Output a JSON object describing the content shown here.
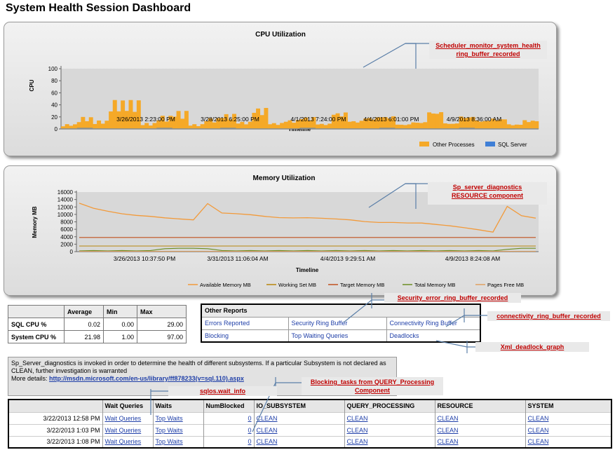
{
  "title": "System Health Session Dashboard",
  "cpu_chart": {
    "title": "CPU Utilization",
    "ylabel": "CPU",
    "xlabel": "Timeline",
    "yticks": [
      "0",
      "20",
      "40",
      "60",
      "80",
      "100"
    ],
    "xticks": [
      "3/26/2013 2:23:00 PM",
      "3/28/2013 6:25:00 PM",
      "4/1/2013 7:24:00 PM",
      "4/4/2013 6:01:00 PM",
      "4/9/2013 8:36:00 AM"
    ],
    "legend": [
      "Other Processes",
      "SQL Server"
    ],
    "colors": {
      "other": "#f5a928",
      "sql": "#3f7fd6"
    }
  },
  "memory_chart": {
    "title": "Memory Utilization",
    "ylabel": "Memory MB",
    "xlabel": "Timeline",
    "yticks": [
      "0",
      "2000",
      "4000",
      "6000",
      "8000",
      "10000",
      "12000",
      "14000",
      "16000"
    ],
    "xticks": [
      "3/26/2013 10:37:50 PM",
      "3/31/2013 11:06:04 AM",
      "4/4/2013 9:29:51 AM",
      "4/9/2013 8:24:08 AM"
    ],
    "legend": [
      "Available Memory MB",
      "Working Set MB",
      "Target Memory MB",
      "Total Memory MB",
      "Pages Free MB"
    ],
    "colors": [
      "#f29a3a",
      "#b8860b",
      "#c0501e",
      "#6b8e23",
      "#e0a060"
    ]
  },
  "chart_data": [
    {
      "type": "area",
      "title": "CPU Utilization",
      "xlabel": "Timeline",
      "ylabel": "CPU",
      "ylim": [
        0,
        100
      ],
      "series": [
        {
          "name": "Other Processes",
          "values": [
            8,
            20,
            14,
            48,
            48,
            10,
            22,
            30,
            8,
            18,
            25,
            12,
            35,
            10,
            15,
            20,
            9,
            28,
            14,
            20,
            22,
            8,
            12,
            30,
            10,
            22,
            15,
            18,
            8,
            15
          ]
        },
        {
          "name": "SQL Server",
          "values": [
            1,
            2,
            1,
            1,
            1,
            1,
            2,
            1,
            1,
            1,
            2,
            1,
            1,
            1,
            1,
            2,
            1,
            1,
            1,
            1,
            2,
            1,
            1,
            1,
            1,
            2,
            1,
            1,
            1,
            1
          ]
        }
      ]
    },
    {
      "type": "line",
      "title": "Memory Utilization",
      "xlabel": "Timeline",
      "ylabel": "Memory MB",
      "ylim": [
        0,
        16000
      ],
      "series": [
        {
          "name": "Available Memory MB",
          "values": [
            13000,
            11800,
            11000,
            10200,
            9600,
            9300,
            9000,
            8900,
            8700,
            13000,
            10300,
            10000,
            9800,
            9500,
            9300,
            9200,
            9100,
            8800,
            8600,
            8500,
            8200,
            8000,
            7900,
            7600,
            7500,
            7200,
            7000,
            6600,
            6000,
            5200,
            12000,
            9500,
            9000
          ]
        },
        {
          "name": "Working Set MB",
          "values": [
            1500,
            1500,
            1500,
            1500,
            1500,
            1500,
            1500,
            1500,
            1500,
            1500,
            1500,
            1500,
            1500,
            1500,
            1500,
            1500,
            1500,
            1500,
            1500,
            1500,
            1500,
            1500,
            1500,
            1500,
            1500,
            1500,
            1500,
            1500,
            1500,
            1500,
            1500,
            1500,
            1500
          ]
        },
        {
          "name": "Target Memory MB",
          "values": [
            3800,
            3800,
            3800,
            3800,
            3800,
            3800,
            3800,
            3800,
            3800,
            3800,
            3800,
            3800,
            3800,
            3800,
            3800,
            3800,
            3800,
            3800,
            3800,
            3800,
            3800,
            3800,
            3800,
            3800,
            3800,
            3800,
            3800,
            3800,
            3800,
            3800,
            3800,
            3800,
            3800
          ]
        },
        {
          "name": "Total Memory MB",
          "values": [
            200,
            300,
            200,
            300,
            200,
            300,
            800,
            900,
            900,
            800,
            300,
            200,
            300,
            200,
            300,
            200,
            300,
            200,
            300,
            200,
            300,
            200,
            300,
            200,
            300,
            200,
            300,
            200,
            300,
            200,
            600,
            900,
            900
          ]
        },
        {
          "name": "Pages Free MB",
          "values": [
            100,
            100,
            100,
            100,
            100,
            100,
            100,
            100,
            100,
            100,
            100,
            100,
            100,
            100,
            100,
            100,
            100,
            100,
            100,
            100,
            100,
            100,
            100,
            100,
            100,
            100,
            100,
            100,
            100,
            100,
            100,
            100,
            100
          ]
        }
      ]
    }
  ],
  "stats": {
    "headers": [
      "",
      "Average",
      "Min",
      "Max"
    ],
    "rows": [
      [
        "SQL CPU %",
        "0.02",
        "0.00",
        "29.00"
      ],
      [
        "System CPU %",
        "21.98",
        "1.00",
        "97.00"
      ]
    ]
  },
  "reports": {
    "header": "Other Reports",
    "rows": [
      [
        "Errors Reported",
        "Security Ring Buffer",
        "Connectivity Ring Buffer"
      ],
      [
        "Blocking",
        "Top Waiting Queries",
        "Deadlocks"
      ]
    ]
  },
  "diag": {
    "text1": "Sp_Server_diagnostics is invoked in order to determine the health of different subsystems. If a particular Subsystem is not declared as CLEAN, further investigation is warranted",
    "more_label": "More details: ",
    "link": "http://msdn.microsoft.com/en-us/library/ff878233(v=sql.110).aspx"
  },
  "waits": {
    "headers": [
      "",
      "Wait Queries",
      "Waits",
      "NumBlocked",
      "IO_SUBSYSTEM",
      "QUERY_PROCESSING",
      "RESOURCE",
      "SYSTEM"
    ],
    "rows": [
      [
        "3/22/2013 12:58 PM",
        "Wait Queries",
        "Top Waits",
        "0",
        "CLEAN",
        "CLEAN",
        "CLEAN",
        "CLEAN"
      ],
      [
        "3/22/2013 1:03 PM",
        "Wait Queries",
        "Top Waits",
        "0",
        "CLEAN",
        "CLEAN",
        "CLEAN",
        "CLEAN"
      ],
      [
        "3/22/2013 1:08 PM",
        "Wait Queries",
        "Top Waits",
        "0",
        "CLEAN",
        "CLEAN",
        "CLEAN",
        "CLEAN"
      ]
    ]
  },
  "callouts": {
    "scheduler1": "Scheduler_monitor_system_health",
    "scheduler2": "ring_buffer_recorded",
    "spdiag1": "Sp_server_diagnostics",
    "spdiag2": "RESOURCE component",
    "security": "Security_error_ring_buffer_recorded",
    "connectivity": "connectivity_ring_buffer_recorded",
    "deadlock": "Xml_deadlock_graph",
    "blocking1": "Blocking_tasks from QUERY_Processing",
    "blocking2": "Component",
    "sqlos": "sqlos.wait_info"
  }
}
